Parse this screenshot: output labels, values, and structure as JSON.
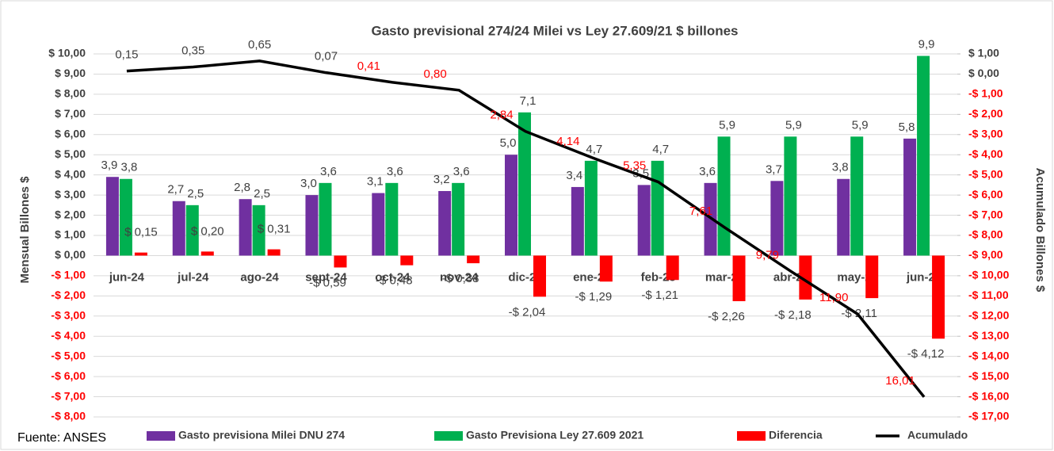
{
  "chart_data": {
    "type": "combo",
    "title": "Gasto previsional  274/24 Milei vs Ley 27.609/21 $ billones",
    "ylabel": "Mensual Billones $",
    "y2label": "Acumulado Billones $",
    "source": "Fuente: ANSES",
    "categories": [
      "jun-24",
      "jul-24",
      "ago-24",
      "sept-24",
      "oct-24",
      "nov-24",
      "dic-24",
      "ene-25",
      "feb-25",
      "mar-25",
      "abr-25",
      "may-25",
      "jun-25"
    ],
    "ylim": [
      -8,
      10
    ],
    "yticks": [
      {
        "value": 10,
        "label": "$ 10,00"
      },
      {
        "value": 9,
        "label": "$ 9,00"
      },
      {
        "value": 8,
        "label": "$ 8,00"
      },
      {
        "value": 7,
        "label": "$ 7,00"
      },
      {
        "value": 6,
        "label": "$ 6,00"
      },
      {
        "value": 5,
        "label": "$ 5,00"
      },
      {
        "value": 4,
        "label": "$ 4,00"
      },
      {
        "value": 3,
        "label": "$ 3,00"
      },
      {
        "value": 2,
        "label": "$ 2,00"
      },
      {
        "value": 1,
        "label": "$ 1,00"
      },
      {
        "value": 0,
        "label": "$ 0,00"
      },
      {
        "value": -1,
        "label": "-$ 1,00"
      },
      {
        "value": -2,
        "label": "-$ 2,00"
      },
      {
        "value": -3,
        "label": "-$ 3,00"
      },
      {
        "value": -4,
        "label": "-$ 4,00"
      },
      {
        "value": -5,
        "label": "-$ 5,00"
      },
      {
        "value": -6,
        "label": "-$ 6,00"
      },
      {
        "value": -7,
        "label": "-$ 7,00"
      },
      {
        "value": -8,
        "label": "-$ 8,00"
      }
    ],
    "y2lim": [
      -17,
      1
    ],
    "y2ticks": [
      {
        "value": 1,
        "label": "$ 1,00"
      },
      {
        "value": 0,
        "label": "$ 0,00"
      },
      {
        "value": -1,
        "label": "-$ 1,00"
      },
      {
        "value": -2,
        "label": "-$ 2,00"
      },
      {
        "value": -3,
        "label": "-$ 3,00"
      },
      {
        "value": -4,
        "label": "-$ 4,00"
      },
      {
        "value": -5,
        "label": "-$ 5,00"
      },
      {
        "value": -6,
        "label": "-$ 6,00"
      },
      {
        "value": -7,
        "label": "-$ 7,00"
      },
      {
        "value": -8,
        "label": "-$ 8,00"
      },
      {
        "value": -9,
        "label": "-$ 9,00"
      },
      {
        "value": -10,
        "label": "-$ 10,00"
      },
      {
        "value": -11,
        "label": "-$ 11,00"
      },
      {
        "value": -12,
        "label": "-$ 12,00"
      },
      {
        "value": -13,
        "label": "-$ 13,00"
      },
      {
        "value": -14,
        "label": "-$ 14,00"
      },
      {
        "value": -15,
        "label": "-$ 15,00"
      },
      {
        "value": -16,
        "label": "-$ 16,00"
      },
      {
        "value": -17,
        "label": "-$ 17,00"
      }
    ],
    "series": [
      {
        "name": "Gasto previsiona Milei DNU 274",
        "color": "#7030a0",
        "kind": "bar",
        "values": [
          3.9,
          2.7,
          2.8,
          3.0,
          3.1,
          3.2,
          5.0,
          3.4,
          3.5,
          3.6,
          3.7,
          3.8,
          5.8
        ],
        "value_labels": [
          "3,9",
          "2,7",
          "2,8",
          "3,0",
          "3,1",
          "3,2",
          "5,0",
          "3,4",
          "3,5",
          "3,6",
          "3,7",
          "3,8",
          "5,8"
        ]
      },
      {
        "name": "Gasto Previsiona Ley 27.609 2021",
        "color": "#00b050",
        "kind": "bar",
        "values": [
          3.8,
          2.5,
          2.5,
          3.6,
          3.6,
          3.6,
          7.1,
          4.7,
          4.7,
          5.9,
          5.9,
          5.9,
          9.9
        ],
        "value_labels": [
          "3,8",
          "2,5",
          "2,5",
          "3,6",
          "3,6",
          "3,6",
          "7,1",
          "4,7",
          "4,7",
          "5,9",
          "5,9",
          "5,9",
          "9,9"
        ]
      },
      {
        "name": "Diferencia",
        "color": "#ff0000",
        "kind": "bar",
        "values": [
          0.15,
          0.2,
          0.31,
          -0.59,
          -0.48,
          -0.38,
          -2.04,
          -1.29,
          -1.21,
          -2.26,
          -2.18,
          -2.11,
          -4.12
        ],
        "value_labels": [
          "$ 0,15",
          "$ 0,20",
          "$ 0,31",
          "-$ 0,59",
          "-$ 0,48",
          "-$ 0,38",
          "-$ 2,04",
          "-$ 1,29",
          "-$ 1,21",
          "-$ 2,26",
          "-$ 2,18",
          "-$ 2,11",
          "-$ 4,12"
        ]
      },
      {
        "name": "Acumulado",
        "color": "#000000",
        "kind": "line",
        "axis": "y2",
        "values": [
          0.15,
          0.35,
          0.65,
          0.07,
          -0.41,
          -0.8,
          -2.84,
          -4.14,
          -5.35,
          -7.61,
          -9.79,
          -11.9,
          -16.01
        ],
        "value_labels": [
          "0,15",
          "0,35",
          "0,65",
          "0,07",
          "0,41",
          "0,80",
          "2,84",
          "4,14",
          "5,35",
          "7,61",
          "9,79",
          "11,90",
          "16,01"
        ]
      }
    ]
  }
}
